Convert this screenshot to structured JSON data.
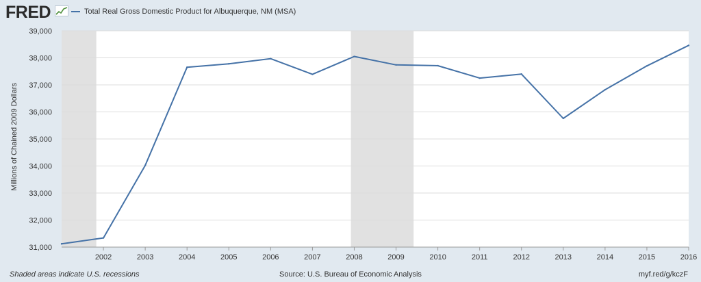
{
  "header": {
    "logo_text": "FRED",
    "logo_icon": "line-chart-icon",
    "legend_label": "Total Real Gross Domestic Product for Albuquerque, NM (MSA)"
  },
  "footer": {
    "note": "Shaded areas indicate U.S. recessions",
    "source": "Source: U.S. Bureau of Economic Analysis",
    "url": "myf.red/g/kczF"
  },
  "colors": {
    "line": "#4572a7",
    "background": "#e1e9f0",
    "plot_background": "#ffffff",
    "recession_shading": "#e1e1e1",
    "grid": "#dcdcdc"
  },
  "chart_data": {
    "type": "line",
    "title": "",
    "xlabel": "",
    "ylabel": "Millions of Chained 2009 Dollars",
    "x": [
      2001,
      2002,
      2003,
      2004,
      2005,
      2006,
      2007,
      2008,
      2009,
      2010,
      2011,
      2012,
      2013,
      2014,
      2015,
      2016
    ],
    "series": [
      {
        "name": "Total Real Gross Domestic Product for Albuquerque, NM (MSA)",
        "values": [
          31120,
          31340,
          34020,
          37650,
          37780,
          37970,
          37390,
          38050,
          37740,
          37710,
          37250,
          37400,
          35760,
          36820,
          37700,
          38460
        ]
      }
    ],
    "xticks": [
      "2002",
      "2003",
      "2004",
      "2005",
      "2006",
      "2007",
      "2008",
      "2009",
      "2010",
      "2011",
      "2012",
      "2013",
      "2014",
      "2015",
      "2016"
    ],
    "yticks": [
      "31,000",
      "32,000",
      "33,000",
      "34,000",
      "35,000",
      "36,000",
      "37,000",
      "38,000",
      "39,000"
    ],
    "ylim": [
      31000,
      39000
    ],
    "recessions": [
      [
        2001.0,
        2001.83
      ],
      [
        2007.92,
        2009.42
      ]
    ],
    "grid": true,
    "legend": "top-left"
  }
}
